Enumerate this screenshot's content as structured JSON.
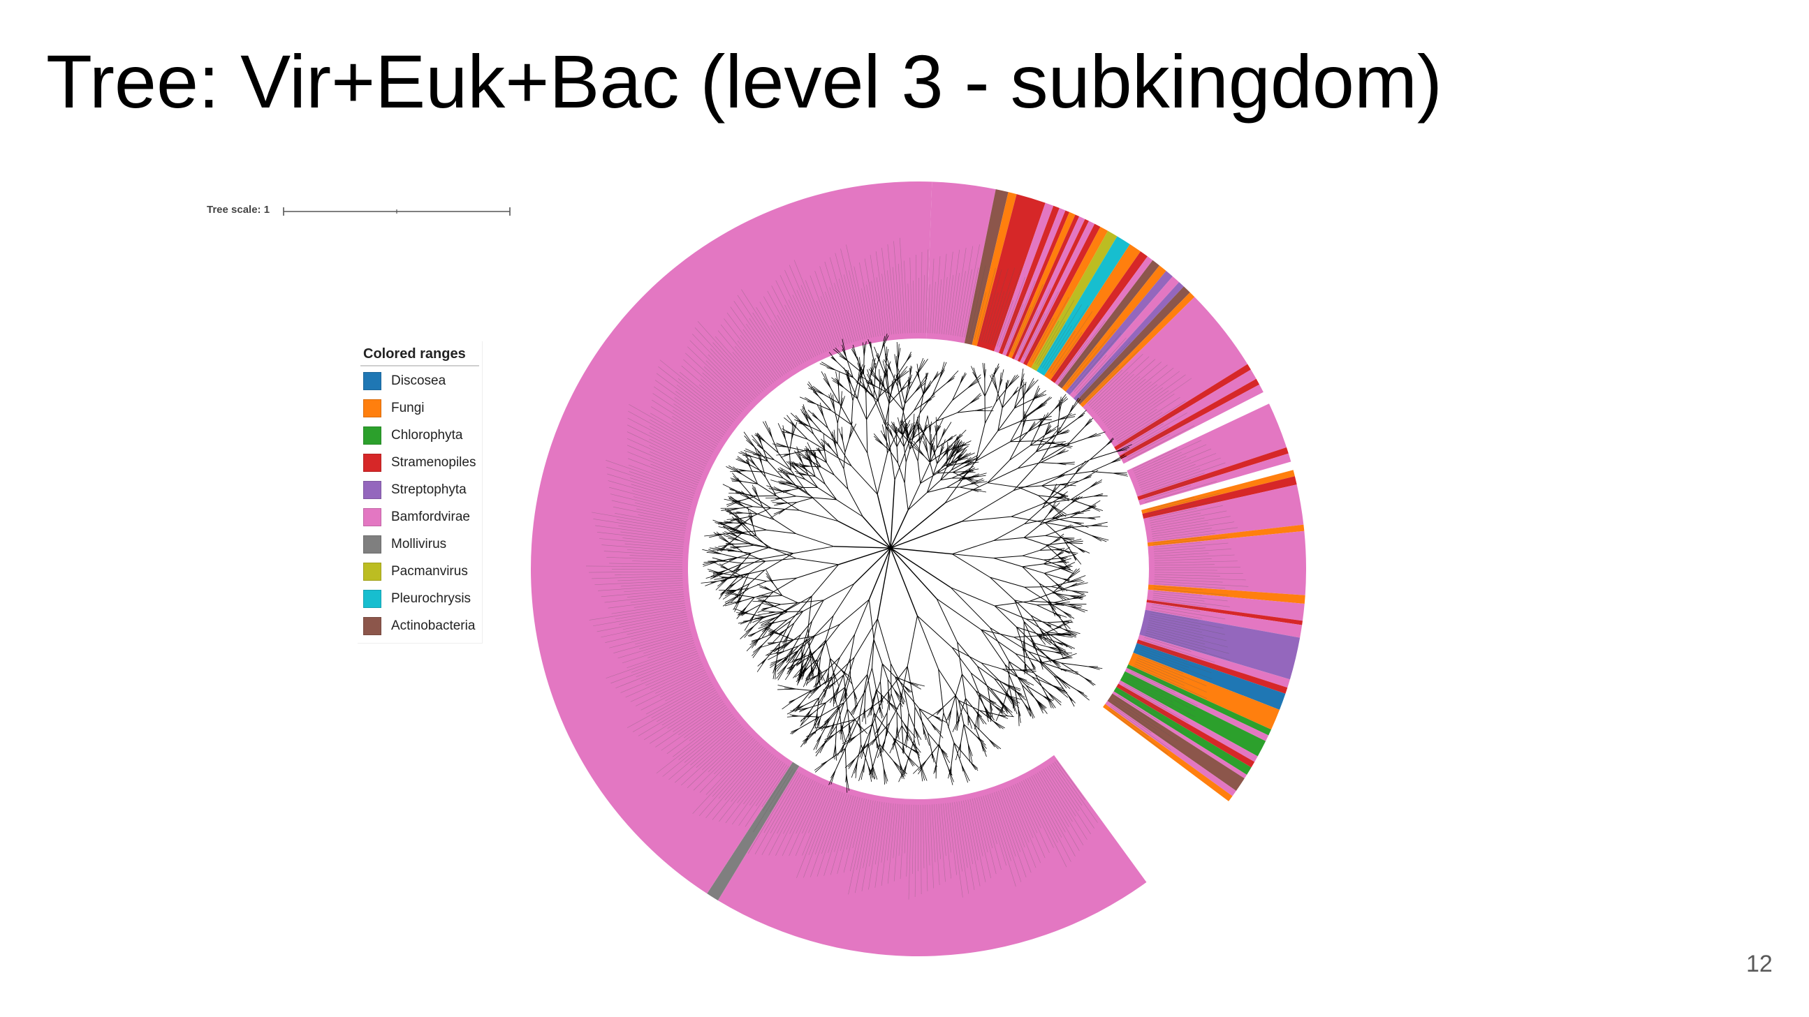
{
  "slide": {
    "title": "Tree: Vir+Euk+Bac (level 3 - subkingdom)",
    "page_number": "12"
  },
  "tree_scale": {
    "label": "Tree scale: 1"
  },
  "legend": {
    "title": "Colored ranges",
    "items": [
      {
        "label": "Discosea",
        "color": "#1f77b4"
      },
      {
        "label": "Fungi",
        "color": "#ff7f0e"
      },
      {
        "label": "Chlorophyta",
        "color": "#2ca02c"
      },
      {
        "label": "Stramenopiles",
        "color": "#d62728"
      },
      {
        "label": "Streptophyta",
        "color": "#9467bd"
      },
      {
        "label": "Bamfordvirae",
        "color": "#e377c2"
      },
      {
        "label": "Mollivirus",
        "color": "#7f7f7f"
      },
      {
        "label": "Pacmanvirus",
        "color": "#bcbd22"
      },
      {
        "label": "Pleurochrysis",
        "color": "#17becf"
      },
      {
        "label": "Actinobacteria",
        "color": "#8c564b"
      }
    ]
  },
  "tree": {
    "layout": "circular",
    "branch_color": "#000000",
    "label_color": "#555555",
    "colored_ranges": [
      {
        "group": "Bamfordvirae",
        "share": 0.03
      },
      {
        "group": "Actinobacteria",
        "share": 0.006
      },
      {
        "group": "Fungi",
        "share": 0.004
      },
      {
        "group": "Stramenopiles",
        "share": 0.014
      },
      {
        "group": "Bamfordvirae",
        "share": 0.004
      },
      {
        "group": "Stramenopiles",
        "share": 0.003
      },
      {
        "group": "Bamfordvirae",
        "share": 0.003
      },
      {
        "group": "Stramenopiles",
        "share": 0.002
      },
      {
        "group": "Fungi",
        "share": 0.003
      },
      {
        "group": "Stramenopiles",
        "share": 0.002
      },
      {
        "group": "Bamfordvirae",
        "share": 0.003
      },
      {
        "group": "Stramenopiles",
        "share": 0.002
      },
      {
        "group": "Bamfordvirae",
        "share": 0.003
      },
      {
        "group": "Stramenopiles",
        "share": 0.003
      },
      {
        "group": "Fungi",
        "share": 0.004
      },
      {
        "group": "Pacmanvirus",
        "share": 0.005
      },
      {
        "group": "Pleurochrysis",
        "share": 0.007
      },
      {
        "group": "Fungi",
        "share": 0.006
      },
      {
        "group": "Stramenopiles",
        "share": 0.004
      },
      {
        "group": "Bamfordvirae",
        "share": 0.003
      },
      {
        "group": "Actinobacteria",
        "share": 0.004
      },
      {
        "group": "Fungi",
        "share": 0.004
      },
      {
        "group": "Streptophyta",
        "share": 0.004
      },
      {
        "group": "Bamfordvirae",
        "share": 0.004
      },
      {
        "group": "Streptophyta",
        "share": 0.003
      },
      {
        "group": "Actinobacteria",
        "share": 0.004
      },
      {
        "group": "Fungi",
        "share": 0.003
      },
      {
        "group": "Bamfordvirae",
        "share": 0.04
      },
      {
        "group": "Stramenopiles",
        "share": 0.003
      },
      {
        "group": "Bamfordvirae",
        "share": 0.005
      },
      {
        "group": "Stramenopiles",
        "share": 0.003
      },
      {
        "group": "Bamfordvirae",
        "share": 0.004
      },
      {
        "group": "gap",
        "share": 0.006
      },
      {
        "group": "Bamfordvirae",
        "share": 0.022
      },
      {
        "group": "Stramenopiles",
        "share": 0.003
      },
      {
        "group": "Bamfordvirae",
        "share": 0.004
      },
      {
        "group": "gap",
        "share": 0.004
      },
      {
        "group": "Fungi",
        "share": 0.003
      },
      {
        "group": "Stramenopiles",
        "share": 0.004
      },
      {
        "group": "Bamfordvirae",
        "share": 0.019
      },
      {
        "group": "Fungi",
        "share": 0.003
      },
      {
        "group": "Bamfordvirae",
        "share": 0.03
      },
      {
        "group": "Fungi",
        "share": 0.004
      },
      {
        "group": "Bamfordvirae",
        "share": 0.008
      },
      {
        "group": "Stramenopiles",
        "share": 0.002
      },
      {
        "group": "Bamfordvirae",
        "share": 0.006
      },
      {
        "group": "Streptophyta",
        "share": 0.02
      },
      {
        "group": "Bamfordvirae",
        "share": 0.004
      },
      {
        "group": "Stramenopiles",
        "share": 0.003
      },
      {
        "group": "Discosea",
        "share": 0.008
      },
      {
        "group": "Fungi",
        "share": 0.01
      },
      {
        "group": "Chlorophyta",
        "share": 0.003
      },
      {
        "group": "Bamfordvirae",
        "share": 0.003
      },
      {
        "group": "Chlorophyta",
        "share": 0.008
      },
      {
        "group": "Bamfordvirae",
        "share": 0.003
      },
      {
        "group": "Stramenopiles",
        "share": 0.003
      },
      {
        "group": "Chlorophyta",
        "share": 0.004
      },
      {
        "group": "Bamfordvirae",
        "share": 0.002
      },
      {
        "group": "Actinobacteria",
        "share": 0.007
      },
      {
        "group": "Bamfordvirae",
        "share": 0.003
      },
      {
        "group": "Fungi",
        "share": 0.003
      },
      {
        "group": "gap",
        "share": 0.054
      },
      {
        "group": "Bamfordvirae",
        "share": 0.212
      },
      {
        "group": "Mollivirus",
        "share": 0.006
      },
      {
        "group": "Bamfordvirae",
        "share": 0.47
      }
    ]
  }
}
